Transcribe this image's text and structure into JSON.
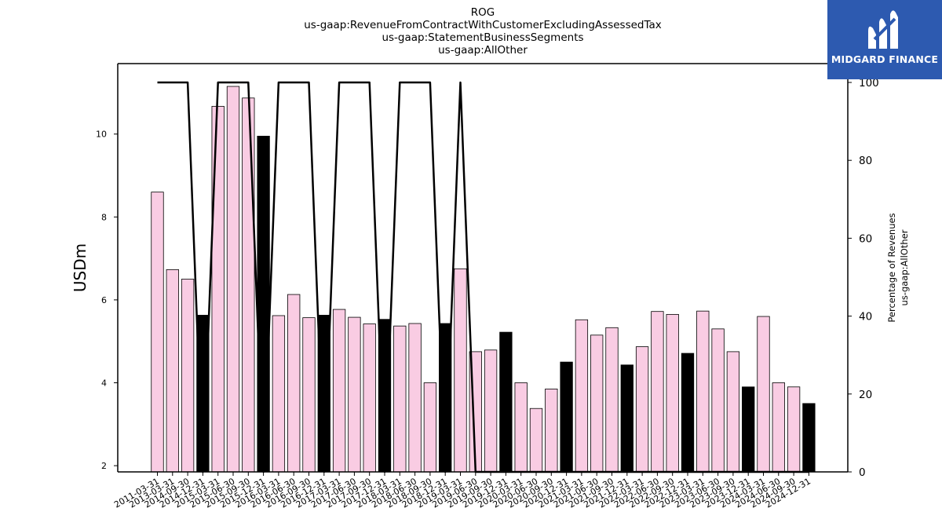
{
  "chart_data": {
    "type": "bar",
    "title_lines": [
      "ROG",
      "us-gaap:RevenueFromContractWithCustomerExcludingAssessedTax",
      "us-gaap:StatementBusinessSegments",
      "us-gaap:AllOther"
    ],
    "ylabel": "USDm",
    "y2label_lines": [
      "Percentage of Revenues",
      "us-gaap:AllOther"
    ],
    "ylim": [
      1.85,
      11.7
    ],
    "y2lim": [
      0,
      100
    ],
    "yticks": [
      2,
      4,
      6,
      8,
      10
    ],
    "y2ticks": [
      0,
      20,
      40,
      60,
      80,
      100
    ],
    "categories": [
      "2011-03-31",
      "2013-03-31",
      "2014-09-30",
      "2014-12-31",
      "2015-03-31",
      "2015-06-30",
      "2015-09-30",
      "2015-12-31",
      "2016-03-31",
      "2016-06-30",
      "2016-09-30",
      "2016-12-31",
      "2017-03-31",
      "2017-06-30",
      "2017-09-30",
      "2017-12-31",
      "2018-03-31",
      "2018-06-30",
      "2018-09-30",
      "2018-12-31",
      "2019-03-31",
      "2019-06-30",
      "2019-09-30",
      "2019-12-31",
      "2020-03-31",
      "2020-06-30",
      "2020-09-30",
      "2020-12-31",
      "2021-03-31",
      "2021-06-30",
      "2021-09-30",
      "2021-12-31",
      "2022-03-31",
      "2022-06-30",
      "2022-09-30",
      "2022-12-31",
      "2023-03-31",
      "2023-06-30",
      "2023-09-30",
      "2023-12-31",
      "2024-03-31",
      "2024-06-30",
      "2024-09-30",
      "2024-12-31"
    ],
    "values": [
      8.6,
      6.73,
      6.5,
      5.63,
      10.67,
      11.15,
      10.87,
      9.95,
      5.62,
      6.13,
      5.57,
      5.63,
      5.77,
      5.58,
      5.42,
      5.53,
      5.37,
      5.43,
      4.0,
      5.43,
      6.75,
      4.75,
      4.79,
      5.22,
      4.0,
      3.38,
      3.85,
      4.5,
      5.52,
      5.15,
      5.33,
      4.43,
      4.87,
      5.72,
      5.65,
      4.71,
      5.73,
      5.3,
      4.75,
      3.9,
      5.6,
      4.0,
      3.9,
      3.5
    ],
    "bar_colors": [
      "pink",
      "pink",
      "pink",
      "black",
      "pink",
      "pink",
      "pink",
      "black",
      "pink",
      "pink",
      "pink",
      "black",
      "pink",
      "pink",
      "pink",
      "black",
      "pink",
      "pink",
      "pink",
      "black",
      "pink",
      "pink",
      "pink",
      "black",
      "pink",
      "pink",
      "pink",
      "black",
      "pink",
      "pink",
      "pink",
      "black",
      "pink",
      "pink",
      "pink",
      "black",
      "pink",
      "pink",
      "pink",
      "black",
      "pink",
      "pink",
      "pink",
      "black"
    ],
    "percentage_line": [
      100,
      100,
      100,
      0,
      100,
      100,
      100,
      0,
      100,
      100,
      100,
      0,
      100,
      100,
      100,
      0,
      100,
      100,
      100,
      0,
      100,
      0,
      0,
      0,
      0,
      0,
      0,
      0,
      0,
      0,
      0,
      0,
      0,
      0,
      0,
      0,
      0,
      0,
      0,
      0,
      0,
      0,
      0,
      0
    ],
    "colors": {
      "pink": "#f9cce3",
      "black": "#000000",
      "line": "#000000"
    }
  },
  "logo": {
    "name": "midgard-finance-logo",
    "text": "MIDGARD FINANCE",
    "background": "#2d5ab0"
  }
}
